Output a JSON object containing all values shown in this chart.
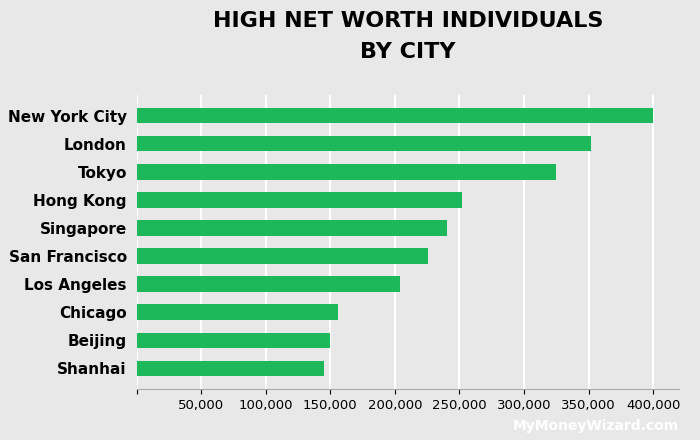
{
  "cities": [
    "New York City",
    "London",
    "Tokyo",
    "Hong Kong",
    "Singapore",
    "San Francisco",
    "Los Angeles",
    "Chicago",
    "Beijing",
    "Shanhai"
  ],
  "values": [
    400000,
    352000,
    325000,
    252000,
    240000,
    226000,
    204000,
    156000,
    150000,
    145000
  ],
  "bar_color": "#1cb85a",
  "background_color": "#e8e8e8",
  "plot_bg_color": "#e8e8e8",
  "title_line1": "HIGH NET WORTH INDIVIDUALS",
  "title_line2": "BY CITY",
  "title_fontsize": 16,
  "title_fontweight": "bold",
  "xlim": [
    0,
    420000
  ],
  "tick_fontsize": 9.5,
  "label_fontsize": 11,
  "footer_text": "MyMoneyWizard.com",
  "footer_bg": "#1cb85a",
  "footer_text_color": "#ffffff"
}
